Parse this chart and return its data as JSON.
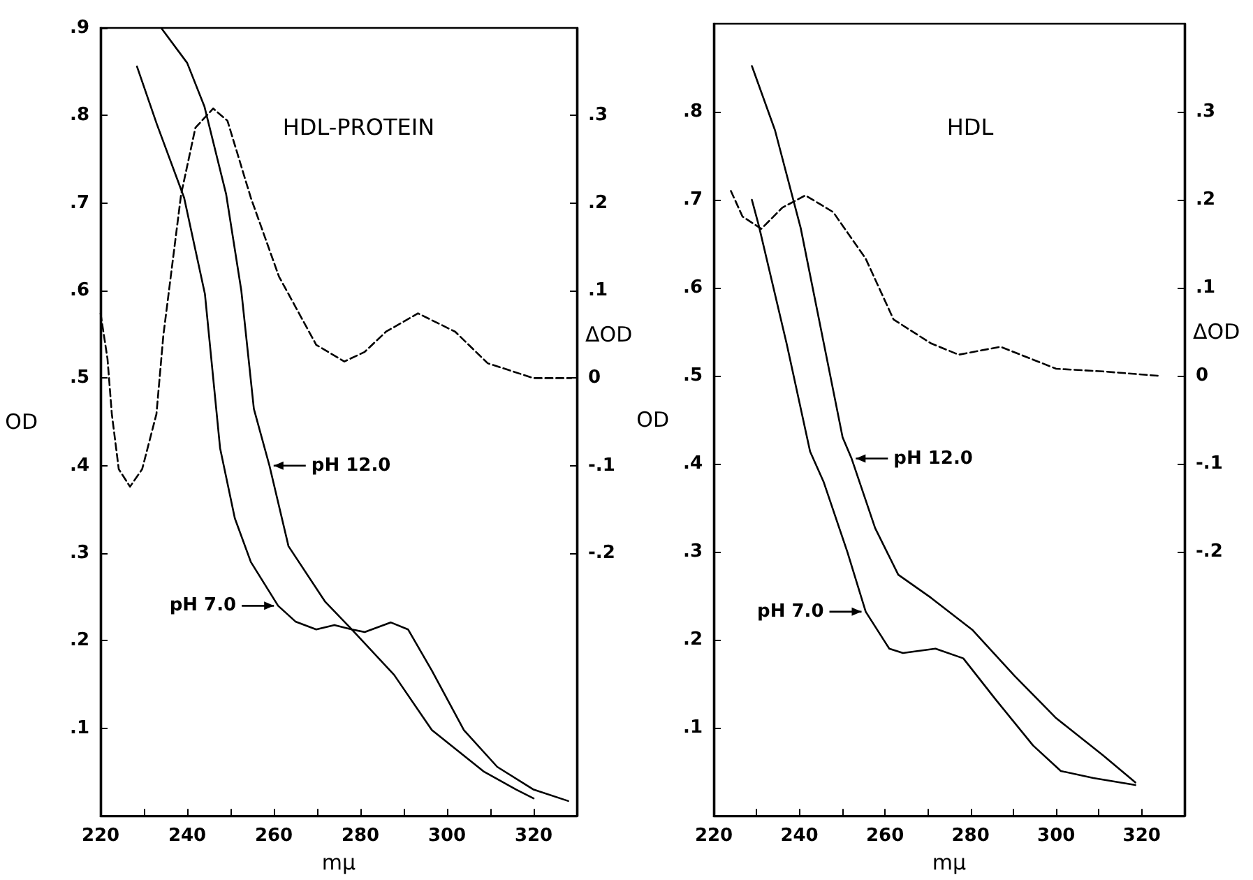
{
  "chart_data": [
    {
      "type": "line",
      "title": "HDL-PROTEIN",
      "xlabel": "mμ",
      "ylabel": "OD",
      "y2label": "ΔOD",
      "xlim": [
        220,
        330
      ],
      "ylim": [
        0,
        0.9
      ],
      "y2lim": [
        -0.5,
        0.4
      ],
      "xticks": [
        220,
        {
          "value": 230,
          "label": null
        },
        240,
        {
          "value": 250,
          "label": null
        },
        260,
        {
          "value": 270,
          "label": null
        },
        280,
        {
          "value": 290,
          "label": null
        },
        300,
        {
          "value": 310,
          "label": null
        },
        320
      ],
      "yticks": [
        {
          "value": 0.1,
          "label": ".1"
        },
        {
          "value": 0.2,
          "label": ".2"
        },
        {
          "value": 0.3,
          "label": ".3"
        },
        {
          "value": 0.4,
          "label": ".4"
        },
        {
          "value": 0.5,
          "label": ".5"
        },
        {
          "value": 0.6,
          "label": ".6"
        },
        {
          "value": 0.7,
          "label": ".7"
        },
        {
          "value": 0.8,
          "label": ".8"
        },
        {
          "value": 0.9,
          "label": ".9"
        }
      ],
      "y2ticks": [
        {
          "value": -0.2,
          "label": "-.2"
        },
        {
          "value": -0.1,
          "label": "-.1"
        },
        0,
        {
          "value": 0.1,
          "label": ".1"
        },
        {
          "value": 0.2,
          "label": ".2"
        },
        {
          "value": 0.3,
          "label": ".3"
        }
      ],
      "marker": "none",
      "line_style": "solid",
      "series": [
        {
          "color": "#000000",
          "x": [
            234,
            240,
            244,
            249,
            252.5,
            255.4,
            259,
            263.4,
            271.8,
            278,
            281,
            287,
            291,
            296.5,
            303.9,
            311.6,
            320,
            328
          ],
          "values": [
            0.9,
            0.86,
            0.81,
            0.71,
            0.6,
            0.465,
            0.4,
            0.308,
            0.245,
            0.213,
            0.21,
            0.221,
            0.213,
            0.166,
            0.098,
            0.056,
            0.03,
            0.017
          ]
        },
        {
          "color": "#000000",
          "x": [
            228.4,
            233,
            239.3,
            244.1,
            247.6,
            251,
            254.7,
            261,
            265,
            269.8,
            274,
            278,
            287.8,
            296.5,
            308.4,
            316,
            320
          ],
          "values": [
            0.856,
            0.79,
            0.706,
            0.596,
            0.42,
            0.34,
            0.29,
            0.24,
            0.222,
            0.213,
            0.218,
            0.213,
            0.161,
            0.098,
            0.051,
            0.03,
            0.02
          ]
        },
        {
          "color": "#000000",
          "axis": "y2",
          "line_style": "dashed",
          "x": [
            220,
            221.6,
            222.6,
            224.2,
            226.8,
            229.6,
            232.9,
            234.5,
            238.6,
            241.9,
            246,
            249.3,
            254.7,
            261.2,
            269.8,
            276.3,
            281,
            285.9,
            293.3,
            301.9,
            309.4,
            320,
            328.7
          ],
          "values": [
            0.074,
            0.022,
            -0.041,
            -0.104,
            -0.124,
            -0.104,
            -0.041,
            0.049,
            0.21,
            0.286,
            0.308,
            0.294,
            0.206,
            0.116,
            0.038,
            0.019,
            0.03,
            0.053,
            0.074,
            0.053,
            0.017,
            0,
            0
          ]
        }
      ],
      "annotations": [
        {
          "text": "pH 12.0",
          "x": 259,
          "y": 0.4
        },
        {
          "text": "pH 7.0",
          "x": 261,
          "y": 0.24
        }
      ]
    },
    {
      "type": "line",
      "title": "HDL",
      "xlabel": "mμ",
      "ylabel": "OD",
      "y2label": "ΔOD",
      "xlim": [
        220,
        330
      ],
      "ylim": [
        0,
        0.9
      ],
      "y2lim": [
        -0.5,
        0.4
      ],
      "xticks": [
        220,
        {
          "value": 230,
          "label": null
        },
        240,
        {
          "value": 250,
          "label": null
        },
        260,
        {
          "value": 270,
          "label": null
        },
        280,
        {
          "value": 290,
          "label": null
        },
        300,
        {
          "value": 310,
          "label": null
        },
        320
      ],
      "yticks": [
        {
          "value": 0.1,
          "label": ".1"
        },
        {
          "value": 0.2,
          "label": ".2"
        },
        {
          "value": 0.3,
          "label": ".3"
        },
        {
          "value": 0.4,
          "label": ".4"
        },
        {
          "value": 0.5,
          "label": ".5"
        },
        {
          "value": 0.6,
          "label": ".6"
        },
        {
          "value": 0.7,
          "label": ".7"
        },
        {
          "value": 0.8,
          "label": ".8"
        }
      ],
      "y2ticks": [
        {
          "value": -0.2,
          "label": "-.2"
        },
        {
          "value": -0.1,
          "label": "-.1"
        },
        0,
        {
          "value": 0.1,
          "label": ".1"
        },
        {
          "value": 0.2,
          "label": ".2"
        },
        {
          "value": 0.3,
          "label": ".3"
        }
      ],
      "marker": "none",
      "line_style": "solid",
      "series": [
        {
          "color": "#000000",
          "x": [
            228.9,
            234.3,
            240.3,
            245.7,
            250.1,
            252.2,
            257.7,
            263.1,
            270.7,
            280.5,
            290.3,
            300,
            310.9,
            318.5
          ],
          "values": [
            0.852,
            0.779,
            0.668,
            0.537,
            0.43,
            0.406,
            0.327,
            0.274,
            0.248,
            0.211,
            0.159,
            0.111,
            0.069,
            0.038
          ]
        },
        {
          "color": "#000000",
          "x": [
            228.9,
            230.5,
            237,
            242.5,
            245.7,
            251.2,
            255.5,
            261,
            264.2,
            271.8,
            278.3,
            285.9,
            294.6,
            301.1,
            308.7,
            318.5
          ],
          "values": [
            0.7,
            0.671,
            0.537,
            0.414,
            0.379,
            0.3,
            0.232,
            0.19,
            0.185,
            0.19,
            0.179,
            0.132,
            0.08,
            0.051,
            0.043,
            0.035
          ]
        },
        {
          "color": "#000000",
          "axis": "y2",
          "line_style": "dashed",
          "x": [
            224,
            226.7,
            231.1,
            236,
            241.4,
            247.9,
            255.5,
            262,
            270.7,
            277.2,
            287,
            300,
            310.9,
            323.9
          ],
          "values": [
            0.21,
            0.181,
            0.167,
            0.191,
            0.205,
            0.186,
            0.133,
            0.064,
            0.037,
            0.024,
            0.033,
            0.008,
            0.005,
            0
          ]
        }
      ],
      "annotations": [
        {
          "text": "pH 12.0",
          "x": 252.2,
          "y": 0.406
        },
        {
          "text": "pH 7.0",
          "x": 255.5,
          "y": 0.232
        }
      ]
    }
  ]
}
